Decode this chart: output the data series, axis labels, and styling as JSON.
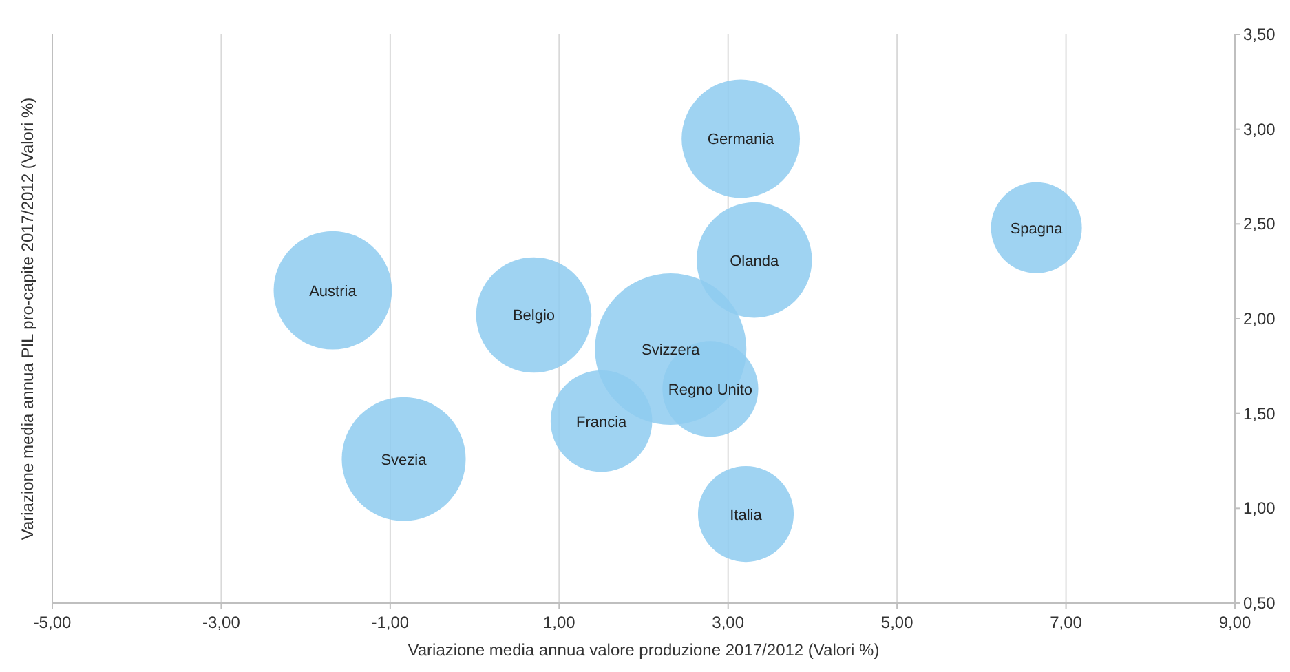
{
  "chart_data": {
    "type": "bubble",
    "xlabel": "Variazione media annua valore produzione 2017/2012 (Valori %)",
    "ylabel": "Variazione media annua PIL pro-capite 2017/2012 (Valori %)",
    "xlim": [
      -5,
      9
    ],
    "ylim": [
      0.5,
      3.5
    ],
    "xticks": [
      {
        "value": -5,
        "label": "-5,00"
      },
      {
        "value": -3,
        "label": "-3,00"
      },
      {
        "value": -1,
        "label": "-1,00"
      },
      {
        "value": 1,
        "label": "1,00"
      },
      {
        "value": 3,
        "label": "3,00"
      },
      {
        "value": 5,
        "label": "5,00"
      },
      {
        "value": 7,
        "label": "7,00"
      },
      {
        "value": 9,
        "label": "9,00"
      }
    ],
    "yticks": [
      {
        "value": 0.5,
        "label": "0,50"
      },
      {
        "value": 1,
        "label": "1,00"
      },
      {
        "value": 1.5,
        "label": "1,50"
      },
      {
        "value": 2,
        "label": "2,00"
      },
      {
        "value": 2.5,
        "label": "2,50"
      },
      {
        "value": 3,
        "label": "3,00"
      },
      {
        "value": 3.5,
        "label": "3,50"
      }
    ],
    "grid": "x",
    "series": [
      {
        "name": "Germania",
        "color": "#8ecbf0",
        "x": [
          3.15
        ],
        "values": [
          2.95
        ],
        "sizes": [
          0.61
        ]
      },
      {
        "name": "Spagna",
        "color": "#8ecbf0",
        "x": [
          6.65
        ],
        "values": [
          2.48
        ],
        "sizes": [
          0.36
        ]
      },
      {
        "name": "Olanda",
        "color": "#8ecbf0",
        "x": [
          3.31
        ],
        "values": [
          2.31
        ],
        "sizes": [
          0.58
        ]
      },
      {
        "name": "Austria",
        "color": "#8ecbf0",
        "x": [
          -1.68
        ],
        "values": [
          2.15
        ],
        "sizes": [
          0.61
        ]
      },
      {
        "name": "Belgio",
        "color": "#8ecbf0",
        "x": [
          0.7
        ],
        "values": [
          2.02
        ],
        "sizes": [
          0.58
        ]
      },
      {
        "name": "Svizzera",
        "color": "#8ecbf0",
        "x": [
          2.32
        ],
        "values": [
          1.84
        ],
        "sizes": [
          1
        ]
      },
      {
        "name": "Regno Unito",
        "color": "#8ecbf0",
        "x": [
          2.79
        ],
        "values": [
          1.63
        ],
        "sizes": [
          0.4
        ]
      },
      {
        "name": "Francia",
        "color": "#8ecbf0",
        "x": [
          1.5
        ],
        "values": [
          1.46
        ],
        "sizes": [
          0.45
        ]
      },
      {
        "name": "Svezia",
        "color": "#8ecbf0",
        "x": [
          -0.84
        ],
        "values": [
          1.26
        ],
        "sizes": [
          0.67
        ]
      },
      {
        "name": "Italia",
        "color": "#8ecbf0",
        "x": [
          3.21
        ],
        "values": [
          0.97
        ],
        "sizes": [
          0.4
        ]
      }
    ]
  }
}
